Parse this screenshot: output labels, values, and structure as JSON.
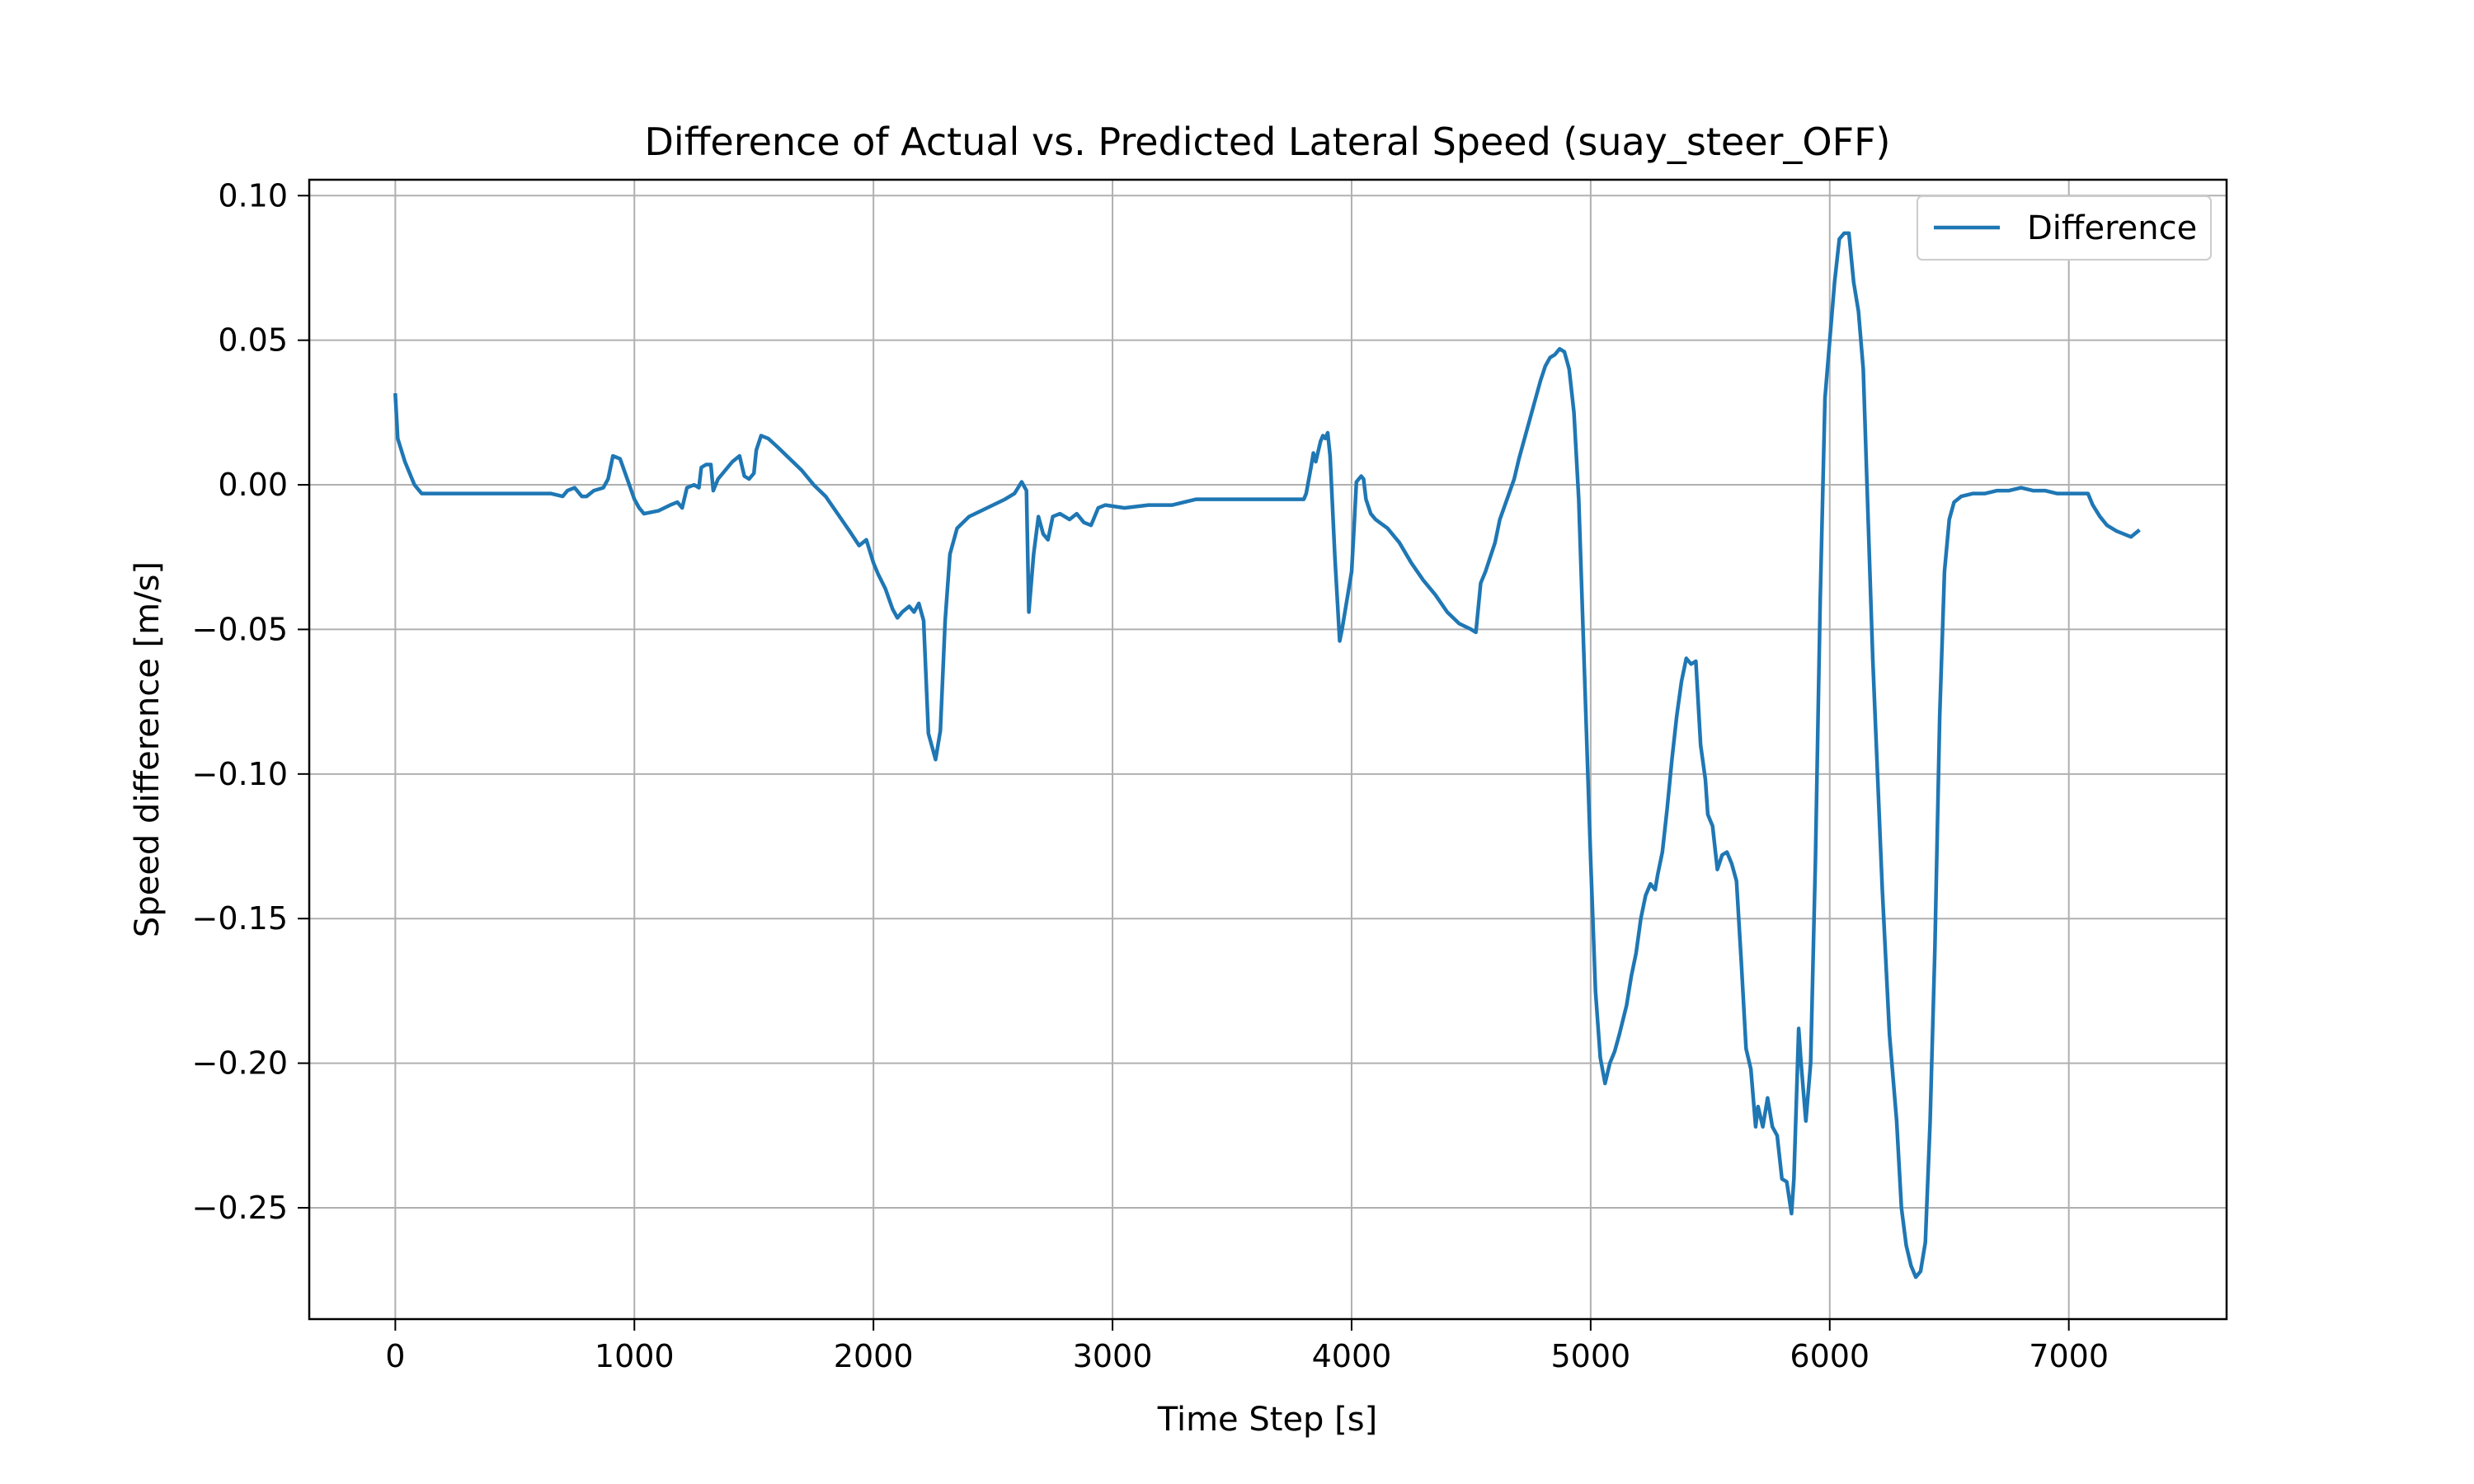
{
  "chart_data": {
    "type": "line",
    "title": "Difference of Actual vs. Predicted Lateral Speed (suay_steer_OFF)",
    "xlabel": "Time Step [s]",
    "ylabel": "Speed difference [m/s]",
    "xlim": [
      -360,
      7660
    ],
    "ylim": [
      -0.2885,
      0.1055
    ],
    "xticks": [
      0,
      1000,
      2000,
      3000,
      4000,
      5000,
      6000,
      7000
    ],
    "xtick_labels": [
      "0",
      "1000",
      "2000",
      "3000",
      "4000",
      "5000",
      "6000",
      "7000"
    ],
    "yticks": [
      0.1,
      0.05,
      0.0,
      -0.05,
      -0.1,
      -0.15,
      -0.2,
      -0.25
    ],
    "ytick_labels": [
      "0.10",
      "0.05",
      "0.00",
      "−0.05",
      "−0.10",
      "−0.15",
      "−0.20",
      "−0.25"
    ],
    "grid": true,
    "legend_position": "upper-right",
    "series": [
      {
        "name": "Difference",
        "color": "#1f77b4",
        "points": [
          [
            0,
            0.031
          ],
          [
            10,
            0.016
          ],
          [
            40,
            0.008
          ],
          [
            80,
            0.0
          ],
          [
            110,
            -0.003
          ],
          [
            300,
            -0.003
          ],
          [
            500,
            -0.003
          ],
          [
            650,
            -0.003
          ],
          [
            700,
            -0.004
          ],
          [
            720,
            -0.002
          ],
          [
            750,
            -0.001
          ],
          [
            780,
            -0.004
          ],
          [
            800,
            -0.004
          ],
          [
            830,
            -0.002
          ],
          [
            870,
            -0.001
          ],
          [
            890,
            0.002
          ],
          [
            910,
            0.01
          ],
          [
            940,
            0.009
          ],
          [
            970,
            0.002
          ],
          [
            1000,
            -0.005
          ],
          [
            1020,
            -0.008
          ],
          [
            1040,
            -0.01
          ],
          [
            1100,
            -0.009
          ],
          [
            1150,
            -0.007
          ],
          [
            1180,
            -0.006
          ],
          [
            1200,
            -0.008
          ],
          [
            1220,
            -0.001
          ],
          [
            1250,
            0.0
          ],
          [
            1270,
            -0.001
          ],
          [
            1280,
            0.006
          ],
          [
            1300,
            0.007
          ],
          [
            1320,
            0.007
          ],
          [
            1330,
            -0.002
          ],
          [
            1350,
            0.002
          ],
          [
            1380,
            0.005
          ],
          [
            1410,
            0.008
          ],
          [
            1440,
            0.01
          ],
          [
            1460,
            0.003
          ],
          [
            1480,
            0.002
          ],
          [
            1500,
            0.004
          ],
          [
            1510,
            0.012
          ],
          [
            1530,
            0.017
          ],
          [
            1560,
            0.016
          ],
          [
            1600,
            0.013
          ],
          [
            1650,
            0.009
          ],
          [
            1700,
            0.005
          ],
          [
            1750,
            0.0
          ],
          [
            1800,
            -0.004
          ],
          [
            1850,
            -0.01
          ],
          [
            1900,
            -0.016
          ],
          [
            1940,
            -0.021
          ],
          [
            1970,
            -0.019
          ],
          [
            2000,
            -0.027
          ],
          [
            2020,
            -0.031
          ],
          [
            2050,
            -0.036
          ],
          [
            2080,
            -0.043
          ],
          [
            2100,
            -0.046
          ],
          [
            2120,
            -0.044
          ],
          [
            2150,
            -0.042
          ],
          [
            2170,
            -0.044
          ],
          [
            2190,
            -0.041
          ],
          [
            2210,
            -0.047
          ],
          [
            2230,
            -0.086
          ],
          [
            2260,
            -0.095
          ],
          [
            2280,
            -0.085
          ],
          [
            2300,
            -0.047
          ],
          [
            2320,
            -0.024
          ],
          [
            2350,
            -0.015
          ],
          [
            2400,
            -0.011
          ],
          [
            2450,
            -0.009
          ],
          [
            2500,
            -0.007
          ],
          [
            2550,
            -0.005
          ],
          [
            2590,
            -0.003
          ],
          [
            2620,
            0.001
          ],
          [
            2640,
            -0.002
          ],
          [
            2650,
            -0.044
          ],
          [
            2670,
            -0.024
          ],
          [
            2690,
            -0.011
          ],
          [
            2710,
            -0.017
          ],
          [
            2730,
            -0.019
          ],
          [
            2750,
            -0.011
          ],
          [
            2780,
            -0.01
          ],
          [
            2820,
            -0.012
          ],
          [
            2850,
            -0.01
          ],
          [
            2880,
            -0.013
          ],
          [
            2910,
            -0.014
          ],
          [
            2940,
            -0.008
          ],
          [
            2970,
            -0.007
          ],
          [
            3050,
            -0.008
          ],
          [
            3150,
            -0.007
          ],
          [
            3250,
            -0.007
          ],
          [
            3300,
            -0.006
          ],
          [
            3350,
            -0.005
          ],
          [
            3450,
            -0.005
          ],
          [
            3550,
            -0.005
          ],
          [
            3650,
            -0.005
          ],
          [
            3700,
            -0.005
          ],
          [
            3750,
            -0.005
          ],
          [
            3800,
            -0.005
          ],
          [
            3810,
            -0.003
          ],
          [
            3830,
            0.006
          ],
          [
            3840,
            0.011
          ],
          [
            3850,
            0.008
          ],
          [
            3870,
            0.015
          ],
          [
            3880,
            0.017
          ],
          [
            3890,
            0.016
          ],
          [
            3900,
            0.018
          ],
          [
            3910,
            0.01
          ],
          [
            3930,
            -0.025
          ],
          [
            3950,
            -0.054
          ],
          [
            3960,
            -0.05
          ],
          [
            3980,
            -0.04
          ],
          [
            4000,
            -0.03
          ],
          [
            4010,
            -0.015
          ],
          [
            4020,
            0.001
          ],
          [
            4040,
            0.003
          ],
          [
            4050,
            0.002
          ],
          [
            4060,
            -0.005
          ],
          [
            4080,
            -0.01
          ],
          [
            4100,
            -0.012
          ],
          [
            4150,
            -0.015
          ],
          [
            4200,
            -0.02
          ],
          [
            4250,
            -0.027
          ],
          [
            4300,
            -0.033
          ],
          [
            4350,
            -0.038
          ],
          [
            4400,
            -0.044
          ],
          [
            4450,
            -0.048
          ],
          [
            4500,
            -0.05
          ],
          [
            4520,
            -0.051
          ],
          [
            4540,
            -0.034
          ],
          [
            4560,
            -0.03
          ],
          [
            4580,
            -0.025
          ],
          [
            4600,
            -0.02
          ],
          [
            4620,
            -0.012
          ],
          [
            4650,
            -0.005
          ],
          [
            4680,
            0.002
          ],
          [
            4700,
            0.009
          ],
          [
            4730,
            0.018
          ],
          [
            4760,
            0.027
          ],
          [
            4790,
            0.036
          ],
          [
            4810,
            0.041
          ],
          [
            4830,
            0.044
          ],
          [
            4850,
            0.045
          ],
          [
            4870,
            0.047
          ],
          [
            4890,
            0.046
          ],
          [
            4910,
            0.04
          ],
          [
            4930,
            0.025
          ],
          [
            4950,
            -0.005
          ],
          [
            4960,
            -0.03
          ],
          [
            4980,
            -0.08
          ],
          [
            5000,
            -0.13
          ],
          [
            5020,
            -0.175
          ],
          [
            5040,
            -0.198
          ],
          [
            5060,
            -0.207
          ],
          [
            5080,
            -0.2
          ],
          [
            5100,
            -0.196
          ],
          [
            5120,
            -0.19
          ],
          [
            5150,
            -0.18
          ],
          [
            5170,
            -0.17
          ],
          [
            5190,
            -0.162
          ],
          [
            5210,
            -0.15
          ],
          [
            5230,
            -0.142
          ],
          [
            5250,
            -0.138
          ],
          [
            5270,
            -0.14
          ],
          [
            5280,
            -0.135
          ],
          [
            5300,
            -0.127
          ],
          [
            5320,
            -0.112
          ],
          [
            5340,
            -0.095
          ],
          [
            5360,
            -0.08
          ],
          [
            5380,
            -0.068
          ],
          [
            5400,
            -0.06
          ],
          [
            5420,
            -0.062
          ],
          [
            5440,
            -0.061
          ],
          [
            5460,
            -0.09
          ],
          [
            5480,
            -0.102
          ],
          [
            5490,
            -0.114
          ],
          [
            5510,
            -0.118
          ],
          [
            5530,
            -0.133
          ],
          [
            5550,
            -0.128
          ],
          [
            5570,
            -0.127
          ],
          [
            5590,
            -0.131
          ],
          [
            5610,
            -0.137
          ],
          [
            5630,
            -0.165
          ],
          [
            5650,
            -0.195
          ],
          [
            5670,
            -0.202
          ],
          [
            5690,
            -0.222
          ],
          [
            5700,
            -0.215
          ],
          [
            5720,
            -0.222
          ],
          [
            5740,
            -0.212
          ],
          [
            5760,
            -0.222
          ],
          [
            5780,
            -0.225
          ],
          [
            5800,
            -0.24
          ],
          [
            5820,
            -0.241
          ],
          [
            5840,
            -0.252
          ],
          [
            5850,
            -0.24
          ],
          [
            5870,
            -0.188
          ],
          [
            5880,
            -0.2
          ],
          [
            5900,
            -0.22
          ],
          [
            5920,
            -0.2
          ],
          [
            5940,
            -0.13
          ],
          [
            5960,
            -0.04
          ],
          [
            5980,
            0.03
          ],
          [
            6000,
            0.05
          ],
          [
            6020,
            0.07
          ],
          [
            6040,
            0.085
          ],
          [
            6060,
            0.087
          ],
          [
            6080,
            0.087
          ],
          [
            6100,
            0.07
          ],
          [
            6120,
            0.06
          ],
          [
            6140,
            0.04
          ],
          [
            6160,
            -0.01
          ],
          [
            6180,
            -0.06
          ],
          [
            6200,
            -0.1
          ],
          [
            6220,
            -0.14
          ],
          [
            6250,
            -0.19
          ],
          [
            6280,
            -0.22
          ],
          [
            6300,
            -0.25
          ],
          [
            6320,
            -0.263
          ],
          [
            6340,
            -0.27
          ],
          [
            6360,
            -0.274
          ],
          [
            6380,
            -0.272
          ],
          [
            6400,
            -0.262
          ],
          [
            6420,
            -0.22
          ],
          [
            6440,
            -0.16
          ],
          [
            6460,
            -0.08
          ],
          [
            6480,
            -0.03
          ],
          [
            6500,
            -0.012
          ],
          [
            6520,
            -0.006
          ],
          [
            6550,
            -0.004
          ],
          [
            6600,
            -0.003
          ],
          [
            6650,
            -0.003
          ],
          [
            6700,
            -0.002
          ],
          [
            6750,
            -0.002
          ],
          [
            6800,
            -0.001
          ],
          [
            6850,
            -0.002
          ],
          [
            6900,
            -0.002
          ],
          [
            6950,
            -0.003
          ],
          [
            7000,
            -0.003
          ],
          [
            7050,
            -0.003
          ],
          [
            7080,
            -0.003
          ],
          [
            7100,
            -0.007
          ],
          [
            7130,
            -0.011
          ],
          [
            7160,
            -0.014
          ],
          [
            7200,
            -0.016
          ],
          [
            7230,
            -0.017
          ],
          [
            7260,
            -0.018
          ],
          [
            7290,
            -0.016
          ]
        ]
      }
    ]
  }
}
